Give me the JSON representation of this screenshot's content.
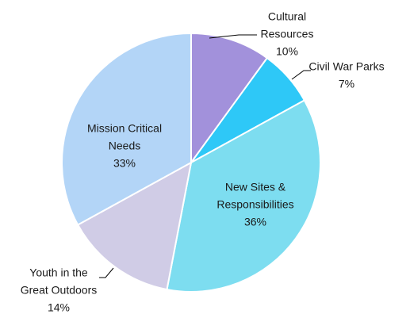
{
  "chart_data": {
    "type": "pie",
    "title": "",
    "start_angle_deg": 0,
    "direction": "clockwise",
    "slices": [
      {
        "label": [
          "Cultural",
          "Resources"
        ],
        "value": 10,
        "percent_label": "10%",
        "color": "#A291DB"
      },
      {
        "label": [
          "Civil War Parks"
        ],
        "value": 7,
        "percent_label": "7%",
        "color": "#2EC8F7"
      },
      {
        "label": [
          "New Sites &",
          "Responsibilities"
        ],
        "value": 36,
        "percent_label": "36%",
        "color": "#7DDDF0"
      },
      {
        "label": [
          "Youth in the",
          "Great Outdoors"
        ],
        "value": 14,
        "percent_label": "14%",
        "color": "#D0CCE6"
      },
      {
        "label": [
          "Mission Critical",
          "Needs"
        ],
        "value": 33,
        "percent_label": "33%",
        "color": "#B3D5F7"
      }
    ]
  }
}
